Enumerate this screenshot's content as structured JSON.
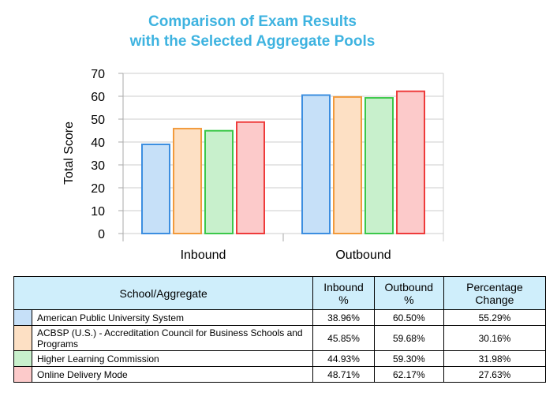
{
  "colors": {
    "title": "#3eb3e0",
    "header_bg": "#cfeefb"
  },
  "chart_data": {
    "type": "bar",
    "title": "Comparison of Exam Results with the Selected Aggregate Pools",
    "title_lines": [
      "Comparison of Exam Results",
      "with the Selected Aggregate Pools"
    ],
    "xlabel": "",
    "ylabel": "Total Score",
    "ylim": [
      0,
      70
    ],
    "yticks": [
      "0",
      "10",
      "20",
      "30",
      "40",
      "50",
      "60",
      "70"
    ],
    "categories": [
      "Inbound",
      "Outbound"
    ],
    "grid": true,
    "series": [
      {
        "name": "American Public University System",
        "values": [
          38.96,
          60.5
        ],
        "fill": "#c6e0f8",
        "stroke": "#3c8ee0"
      },
      {
        "name": "ACBSP (U.S.) - Accreditation Council for Business Schools and Programs",
        "values": [
          45.85,
          59.68
        ],
        "fill": "#fde0c4",
        "stroke": "#f29a3c"
      },
      {
        "name": "Higher Learning Commission",
        "values": [
          44.93,
          59.3
        ],
        "fill": "#c8f0cc",
        "stroke": "#3cc84a"
      },
      {
        "name": "Online Delivery Mode",
        "values": [
          48.71,
          62.17
        ],
        "fill": "#fccaca",
        "stroke": "#ee3b3b"
      }
    ]
  },
  "table": {
    "headers": [
      "School/Aggregate",
      "Inbound %",
      "Outbound %",
      "Percentage Change"
    ],
    "rows": [
      {
        "name": "American Public University System",
        "inbound": "38.96%",
        "outbound": "60.50%",
        "change": "55.29%"
      },
      {
        "name": "ACBSP (U.S.) - Accreditation Council for Business Schools and Programs",
        "inbound": "45.85%",
        "outbound": "59.68%",
        "change": "30.16%"
      },
      {
        "name": "Higher Learning Commission",
        "inbound": "44.93%",
        "outbound": "59.30%",
        "change": "31.98%"
      },
      {
        "name": "Online Delivery Mode",
        "inbound": "48.71%",
        "outbound": "62.17%",
        "change": "27.63%"
      }
    ]
  }
}
